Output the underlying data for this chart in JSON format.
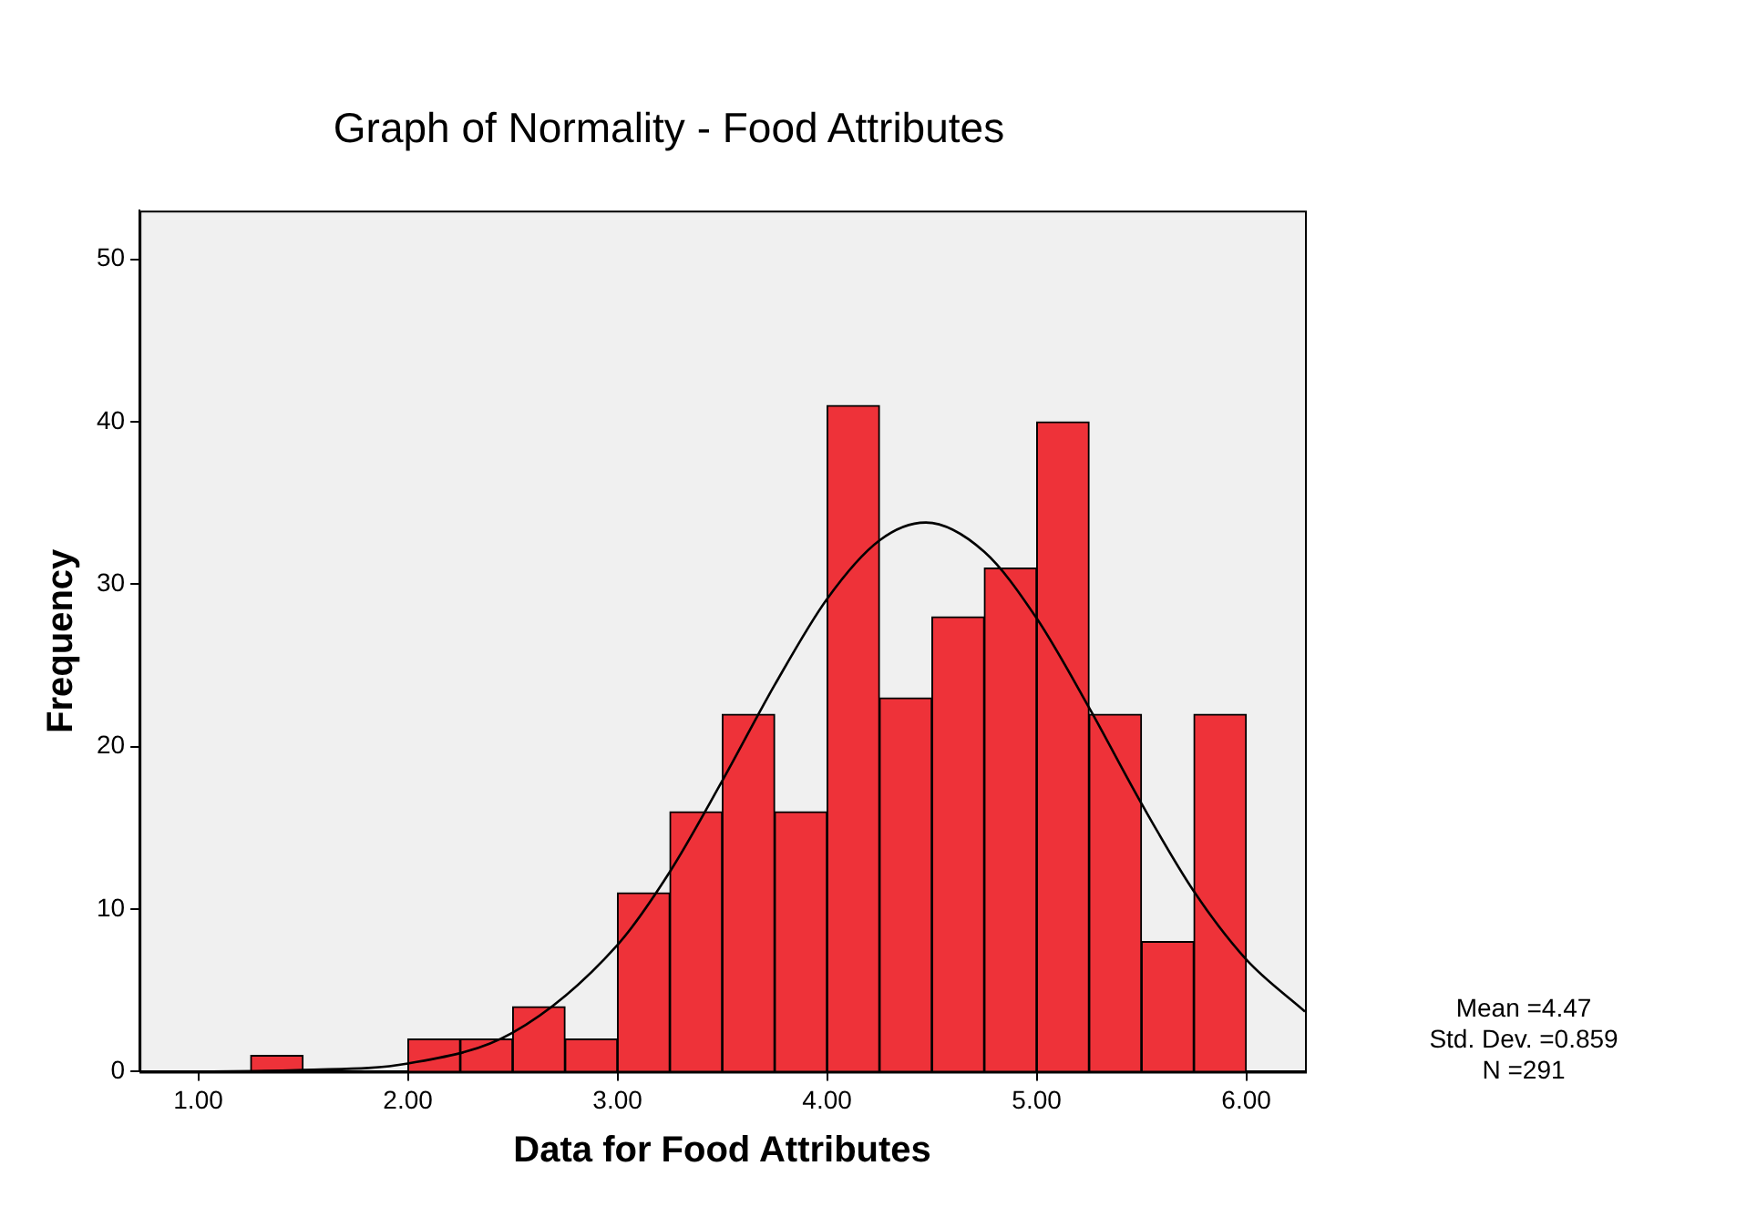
{
  "chart_data": {
    "type": "histogram",
    "title": "Graph of Normality - Food Attributes",
    "xlabel": "Data for Food Attributes",
    "ylabel": "Frequency",
    "bins": [
      1.0,
      1.25,
      1.5,
      1.75,
      2.0,
      2.25,
      2.5,
      2.75,
      3.0,
      3.25,
      3.5,
      3.75,
      4.0,
      4.25,
      4.5,
      4.75,
      5.0,
      5.25,
      5.5,
      5.75,
      6.0
    ],
    "values": [
      0,
      1,
      0,
      0,
      2,
      2,
      4,
      2,
      11,
      16,
      22,
      16,
      41,
      23,
      28,
      31,
      40,
      22,
      8,
      22
    ],
    "color": "#ee3239",
    "series": [
      {
        "type": "line",
        "color": "#000000",
        "x": [
          1.0,
          1.5,
          2.0,
          2.5,
          3.0,
          3.25,
          3.5,
          3.75,
          4.0,
          4.25,
          4.47,
          4.75,
          5.0,
          5.25,
          5.5,
          5.75,
          6.0,
          6.28
        ],
        "values": [
          0.0,
          0.1,
          0.5,
          2.4,
          7.8,
          12.3,
          17.9,
          23.8,
          29.1,
          32.7,
          33.8,
          32.0,
          27.9,
          22.4,
          16.5,
          11.1,
          6.9,
          3.7
        ]
      }
    ],
    "xlim": [
      0.72,
      6.28
    ],
    "ylim": [
      0,
      53
    ],
    "xticks": [
      {
        "value": 1,
        "label": "1.00"
      },
      {
        "value": 2,
        "label": "2.00"
      },
      {
        "value": 3,
        "label": "3.00"
      },
      {
        "value": 4,
        "label": "4.00"
      },
      {
        "value": 5,
        "label": "5.00"
      },
      {
        "value": 6,
        "label": "6.00"
      }
    ],
    "yticks": [
      0,
      10,
      20,
      30,
      40,
      50
    ],
    "grid": false,
    "legend": false,
    "marker": "none",
    "annotations": [
      "Mean =4.47",
      "Std. Dev. =0.859",
      "N =291"
    ]
  }
}
